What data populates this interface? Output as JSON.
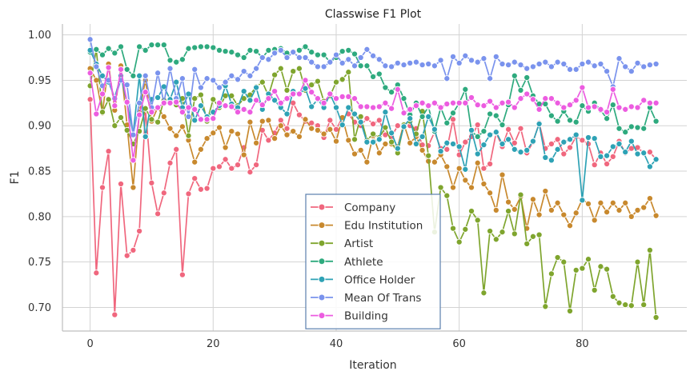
{
  "chart_data": {
    "type": "line",
    "title": "Classwise F1 Plot",
    "xlabel": "Iteration",
    "ylabel": "F1",
    "xlim": [
      -4.5,
      97
    ],
    "ylim": [
      0.674,
      1.012
    ],
    "xticks": [
      0,
      20,
      40,
      60,
      80
    ],
    "yticks": [
      0.7,
      0.75,
      0.8,
      0.85,
      0.9,
      0.95,
      1.0
    ],
    "grid": true,
    "legend_position": "lower center",
    "x": [
      0,
      1,
      2,
      3,
      4,
      5,
      6,
      7,
      8,
      9,
      10,
      11,
      12,
      13,
      14,
      15,
      16,
      17,
      18,
      19,
      20,
      21,
      22,
      23,
      24,
      25,
      26,
      27,
      28,
      29,
      30,
      31,
      32,
      33,
      34,
      35,
      36,
      37,
      38,
      39,
      40,
      41,
      42,
      43,
      44,
      45,
      46,
      47,
      48,
      49,
      50,
      51,
      52,
      53,
      54,
      55,
      56,
      57,
      58,
      59,
      60,
      61,
      62,
      63,
      64,
      65,
      66,
      67,
      68,
      69,
      70,
      71,
      72,
      73,
      74,
      75,
      76,
      77,
      78,
      79,
      80,
      81,
      82,
      83,
      84,
      85,
      86,
      87,
      88,
      89,
      90,
      91,
      92
    ],
    "series": [
      {
        "name": "Company",
        "color": "#f0677e",
        "values": [
          0.929,
          0.738,
          0.832,
          0.872,
          0.692,
          0.836,
          0.757,
          0.763,
          0.784,
          0.918,
          0.837,
          0.803,
          0.826,
          0.859,
          0.874,
          0.736,
          0.825,
          0.842,
          0.83,
          0.831,
          0.853,
          0.855,
          0.863,
          0.853,
          0.857,
          0.876,
          0.849,
          0.857,
          0.895,
          0.884,
          0.892,
          0.906,
          0.897,
          0.925,
          0.912,
          0.905,
          0.903,
          0.9,
          0.887,
          0.906,
          0.896,
          0.909,
          0.913,
          0.904,
          0.9,
          0.908,
          0.902,
          0.906,
          0.89,
          0.888,
          0.9,
          0.902,
          0.9,
          0.897,
          0.879,
          0.878,
          0.893,
          0.875,
          0.874,
          0.907,
          0.868,
          0.882,
          0.888,
          0.901,
          0.853,
          0.858,
          0.892,
          0.877,
          0.896,
          0.881,
          0.897,
          0.87,
          0.882,
          0.903,
          0.875,
          0.88,
          0.885,
          0.869,
          0.876,
          0.888,
          0.884,
          0.88,
          0.857,
          0.87,
          0.858,
          0.866,
          0.883,
          0.87,
          0.875,
          0.876,
          0.87,
          0.871,
          0.863
        ]
      },
      {
        "name": "Edu Institution",
        "color": "#c8892e",
        "values": [
          0.963,
          0.95,
          0.914,
          0.968,
          0.917,
          0.966,
          0.901,
          0.832,
          0.915,
          0.95,
          0.905,
          0.92,
          0.91,
          0.897,
          0.889,
          0.899,
          0.884,
          0.86,
          0.874,
          0.886,
          0.892,
          0.898,
          0.876,
          0.894,
          0.891,
          0.868,
          0.904,
          0.881,
          0.905,
          0.906,
          0.886,
          0.9,
          0.89,
          0.894,
          0.888,
          0.907,
          0.897,
          0.895,
          0.891,
          0.896,
          0.883,
          0.909,
          0.884,
          0.869,
          0.873,
          0.86,
          0.889,
          0.87,
          0.88,
          0.88,
          0.877,
          0.902,
          0.881,
          0.888,
          0.873,
          0.861,
          0.86,
          0.868,
          0.855,
          0.832,
          0.853,
          0.84,
          0.832,
          0.859,
          0.836,
          0.826,
          0.807,
          0.846,
          0.816,
          0.808,
          0.822,
          0.787,
          0.819,
          0.802,
          0.828,
          0.807,
          0.815,
          0.802,
          0.79,
          0.804,
          0.819,
          0.814,
          0.796,
          0.815,
          0.805,
          0.815,
          0.807,
          0.815,
          0.8,
          0.807,
          0.81,
          0.82,
          0.801
        ]
      },
      {
        "name": "Artist",
        "color": "#7fa52e",
        "values": [
          0.944,
          0.984,
          0.915,
          0.929,
          0.9,
          0.909,
          0.895,
          0.88,
          0.894,
          0.919,
          0.907,
          0.904,
          0.928,
          0.926,
          0.923,
          0.93,
          0.889,
          0.93,
          0.934,
          0.905,
          0.929,
          0.92,
          0.933,
          0.933,
          0.922,
          0.93,
          0.934,
          0.943,
          0.948,
          0.933,
          0.956,
          0.963,
          0.939,
          0.96,
          0.963,
          0.939,
          0.945,
          0.949,
          0.927,
          0.933,
          0.948,
          0.951,
          0.959,
          0.885,
          0.91,
          0.884,
          0.891,
          0.887,
          0.898,
          0.882,
          0.87,
          0.901,
          0.905,
          0.891,
          0.916,
          0.867,
          0.783,
          0.832,
          0.823,
          0.787,
          0.772,
          0.786,
          0.806,
          0.796,
          0.716,
          0.784,
          0.775,
          0.783,
          0.806,
          0.781,
          0.824,
          0.77,
          0.778,
          0.78,
          0.701,
          0.737,
          0.755,
          0.75,
          0.696,
          0.741,
          0.743,
          0.753,
          0.719,
          0.745,
          0.742,
          0.712,
          0.705,
          0.703,
          0.702,
          0.75,
          0.703,
          0.763,
          0.689
        ]
      },
      {
        "name": "Athlete",
        "color": "#2eaa7e",
        "values": [
          0.981,
          0.984,
          0.978,
          0.985,
          0.98,
          0.987,
          0.962,
          0.955,
          0.987,
          0.983,
          0.989,
          0.989,
          0.989,
          0.972,
          0.97,
          0.973,
          0.985,
          0.986,
          0.987,
          0.987,
          0.986,
          0.983,
          0.982,
          0.981,
          0.978,
          0.975,
          0.983,
          0.982,
          0.975,
          0.983,
          0.984,
          0.985,
          0.98,
          0.981,
          0.983,
          0.987,
          0.981,
          0.978,
          0.978,
          0.97,
          0.975,
          0.982,
          0.983,
          0.979,
          0.966,
          0.966,
          0.954,
          0.957,
          0.942,
          0.937,
          0.945,
          0.93,
          0.912,
          0.925,
          0.91,
          0.921,
          0.894,
          0.92,
          0.903,
          0.914,
          0.925,
          0.94,
          0.894,
          0.888,
          0.894,
          0.913,
          0.911,
          0.901,
          0.923,
          0.955,
          0.939,
          0.953,
          0.933,
          0.924,
          0.924,
          0.911,
          0.905,
          0.916,
          0.906,
          0.904,
          0.922,
          0.916,
          0.925,
          0.917,
          0.908,
          0.923,
          0.897,
          0.893,
          0.899,
          0.898,
          0.897,
          0.92,
          0.905
        ]
      },
      {
        "name": "Office Holder",
        "color": "#2ea2b5",
        "values": [
          0.983,
          0.968,
          0.955,
          0.948,
          0.931,
          0.955,
          0.925,
          0.891,
          0.955,
          0.888,
          0.929,
          0.931,
          0.943,
          0.929,
          0.948,
          0.92,
          0.935,
          0.906,
          0.922,
          0.91,
          0.915,
          0.922,
          0.944,
          0.924,
          0.92,
          0.938,
          0.928,
          0.942,
          0.918,
          0.935,
          0.928,
          0.92,
          0.913,
          0.938,
          0.935,
          0.941,
          0.921,
          0.929,
          0.92,
          0.935,
          0.92,
          0.901,
          0.92,
          0.913,
          0.904,
          0.882,
          0.882,
          0.885,
          0.915,
          0.892,
          0.875,
          0.899,
          0.908,
          0.88,
          0.888,
          0.91,
          0.896,
          0.872,
          0.881,
          0.88,
          0.877,
          0.852,
          0.895,
          0.869,
          0.879,
          0.89,
          0.893,
          0.88,
          0.885,
          0.874,
          0.871,
          0.873,
          0.883,
          0.902,
          0.865,
          0.862,
          0.874,
          0.882,
          0.885,
          0.89,
          0.818,
          0.887,
          0.886,
          0.866,
          0.867,
          0.877,
          0.88,
          0.871,
          0.883,
          0.869,
          0.87,
          0.855,
          0.863
        ]
      },
      {
        "name": "Mean Of Trans",
        "color": "#7a93ed",
        "values": [
          0.995,
          0.965,
          0.944,
          0.95,
          0.93,
          0.95,
          0.945,
          0.89,
          0.925,
          0.955,
          0.92,
          0.958,
          0.925,
          0.963,
          0.93,
          0.952,
          0.91,
          0.962,
          0.942,
          0.952,
          0.95,
          0.942,
          0.948,
          0.955,
          0.951,
          0.96,
          0.955,
          0.963,
          0.975,
          0.973,
          0.98,
          0.983,
          0.975,
          0.981,
          0.975,
          0.975,
          0.97,
          0.965,
          0.965,
          0.97,
          0.978,
          0.969,
          0.973,
          0.966,
          0.975,
          0.984,
          0.977,
          0.973,
          0.966,
          0.965,
          0.969,
          0.967,
          0.969,
          0.97,
          0.967,
          0.968,
          0.966,
          0.972,
          0.952,
          0.976,
          0.969,
          0.977,
          0.972,
          0.97,
          0.974,
          0.952,
          0.976,
          0.968,
          0.967,
          0.97,
          0.967,
          0.963,
          0.965,
          0.968,
          0.97,
          0.965,
          0.97,
          0.968,
          0.962,
          0.962,
          0.968,
          0.97,
          0.966,
          0.968,
          0.96,
          0.943,
          0.974,
          0.965,
          0.96,
          0.969,
          0.965,
          0.967,
          0.968
        ]
      },
      {
        "name": "Building",
        "color": "#ec5ce0",
        "values": [
          0.958,
          0.913,
          0.935,
          0.964,
          0.922,
          0.962,
          0.926,
          0.862,
          0.912,
          0.937,
          0.915,
          0.92,
          0.925,
          0.925,
          0.926,
          0.915,
          0.92,
          0.918,
          0.907,
          0.907,
          0.908,
          0.925,
          0.922,
          0.921,
          0.915,
          0.918,
          0.915,
          0.928,
          0.923,
          0.93,
          0.938,
          0.925,
          0.93,
          0.935,
          0.935,
          0.95,
          0.937,
          0.93,
          0.925,
          0.935,
          0.93,
          0.932,
          0.932,
          0.93,
          0.921,
          0.921,
          0.92,
          0.921,
          0.925,
          0.919,
          0.94,
          0.914,
          0.918,
          0.922,
          0.925,
          0.922,
          0.925,
          0.92,
          0.924,
          0.925,
          0.925,
          0.925,
          0.931,
          0.923,
          0.922,
          0.927,
          0.92,
          0.925,
          0.926,
          0.92,
          0.93,
          0.935,
          0.929,
          0.918,
          0.93,
          0.93,
          0.925,
          0.92,
          0.923,
          0.928,
          0.942,
          0.92,
          0.921,
          0.918,
          0.915,
          0.94,
          0.92,
          0.918,
          0.921,
          0.92,
          0.928,
          0.925,
          0.925
        ]
      }
    ]
  }
}
